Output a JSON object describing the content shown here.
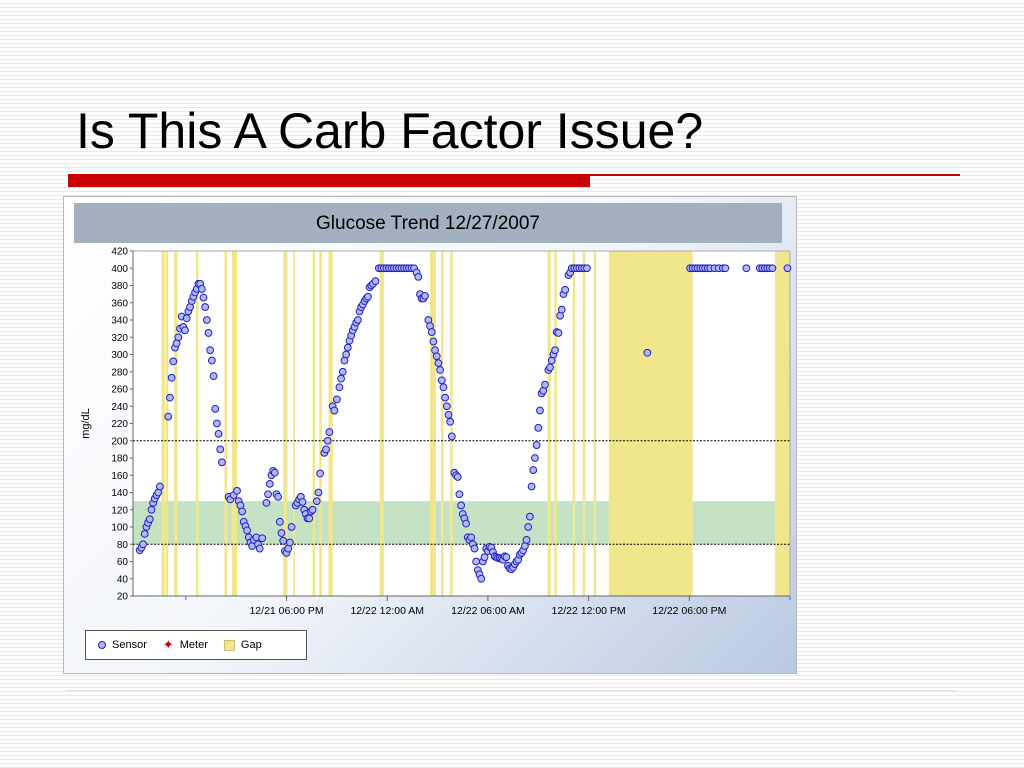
{
  "slide": {
    "title": "Is This A Carb Factor Issue?",
    "colors": {
      "accent_bar": "#cc0000",
      "accent_line": "#cc0000"
    }
  },
  "chart_data": {
    "type": "scatter",
    "title": "Glucose Trend 12/27/2007",
    "ylabel": "mg/dL",
    "xlabel": "",
    "ylim": [
      20,
      420
    ],
    "yticks": [
      20,
      40,
      60,
      80,
      100,
      120,
      140,
      160,
      180,
      200,
      220,
      240,
      260,
      280,
      300,
      320,
      340,
      360,
      380,
      400,
      420
    ],
    "x_unit": "hours after 12/21 12:00 PM",
    "xlim": [
      0,
      36
    ],
    "xticks": [
      {
        "value": 6,
        "label": "12/21 06:00 PM"
      },
      {
        "value": 12,
        "label": "12/22 12:00 AM"
      },
      {
        "value": 18,
        "label": "12/22 06:00 AM"
      },
      {
        "value": 24,
        "label": "12/22 12:00 PM"
      },
      {
        "value": 30,
        "label": "12/22 06:00 PM"
      }
    ],
    "target_range": [
      80,
      200
    ],
    "normal_band": [
      80,
      130
    ],
    "colors": {
      "sensor": "#2020c0",
      "sensor_fill": "#b0b8f8",
      "meter": "#c00000",
      "gap": "#f0e68c",
      "band": "#c4e2c4"
    },
    "legend": {
      "position": "bottom-left",
      "entries": [
        {
          "name": "Sensor",
          "symbol": "circle"
        },
        {
          "name": "Meter",
          "symbol": "diamond"
        },
        {
          "name": "Gap",
          "symbol": "square"
        }
      ]
    },
    "gaps": [
      [
        -1.45,
        -1.25
      ],
      [
        -1.2,
        -1.05
      ],
      [
        -0.7,
        -0.5
      ],
      [
        0.6,
        0.75
      ],
      [
        2.3,
        2.45
      ],
      [
        2.75,
        3.05
      ],
      [
        5.8,
        6.05
      ],
      [
        6.4,
        6.5
      ],
      [
        7.55,
        7.7
      ],
      [
        7.95,
        8.1
      ],
      [
        8.5,
        8.75
      ],
      [
        11.55,
        11.8
      ],
      [
        14.55,
        14.9
      ],
      [
        15.2,
        15.35
      ],
      [
        15.75,
        15.9
      ],
      [
        21.55,
        21.75
      ],
      [
        21.95,
        22.1
      ],
      [
        23.05,
        23.2
      ],
      [
        23.65,
        23.8
      ],
      [
        24.3,
        24.45
      ],
      [
        25.2,
        30.2
      ],
      [
        35.1,
        36
      ]
    ],
    "series": [
      {
        "name": "Sensor",
        "points": [
          [
            -2.75,
            73
          ],
          [
            -2.65,
            76
          ],
          [
            -2.55,
            80
          ],
          [
            -2.45,
            92
          ],
          [
            -2.35,
            100
          ],
          [
            -2.25,
            105
          ],
          [
            -2.15,
            109
          ],
          [
            -2.05,
            120
          ],
          [
            -1.95,
            128
          ],
          [
            -1.85,
            133
          ],
          [
            -1.75,
            137
          ],
          [
            -1.65,
            140
          ],
          [
            -1.55,
            147
          ],
          [
            -1.05,
            228
          ],
          [
            -0.95,
            250
          ],
          [
            -0.85,
            273
          ],
          [
            -0.75,
            292
          ],
          [
            -0.65,
            308
          ],
          [
            -0.55,
            313
          ],
          [
            -0.45,
            320
          ],
          [
            -0.35,
            330
          ],
          [
            -0.25,
            344
          ],
          [
            -0.15,
            332
          ],
          [
            -0.05,
            328
          ],
          [
            0.05,
            342
          ],
          [
            0.15,
            350
          ],
          [
            0.25,
            355
          ],
          [
            0.35,
            362
          ],
          [
            0.45,
            367
          ],
          [
            0.55,
            372
          ],
          [
            0.65,
            376
          ],
          [
            0.75,
            382
          ],
          [
            0.85,
            382
          ],
          [
            0.95,
            376
          ],
          [
            1.05,
            366
          ],
          [
            1.15,
            355
          ],
          [
            1.25,
            340
          ],
          [
            1.35,
            325
          ],
          [
            1.45,
            305
          ],
          [
            1.55,
            293
          ],
          [
            1.65,
            275
          ],
          [
            1.75,
            237
          ],
          [
            1.85,
            220
          ],
          [
            1.95,
            208
          ],
          [
            2.05,
            190
          ],
          [
            2.15,
            175
          ],
          [
            2.55,
            135
          ],
          [
            2.65,
            132
          ],
          [
            2.85,
            137
          ],
          [
            3.05,
            142
          ],
          [
            3.15,
            130
          ],
          [
            3.25,
            125
          ],
          [
            3.35,
            118
          ],
          [
            3.45,
            106
          ],
          [
            3.55,
            101
          ],
          [
            3.65,
            96
          ],
          [
            3.75,
            88
          ],
          [
            3.85,
            82
          ],
          [
            3.95,
            78
          ],
          [
            4.05,
            85
          ],
          [
            4.2,
            88
          ],
          [
            4.3,
            80
          ],
          [
            4.4,
            75
          ],
          [
            4.55,
            87
          ],
          [
            4.8,
            128
          ],
          [
            4.9,
            138
          ],
          [
            5.0,
            150
          ],
          [
            5.1,
            160
          ],
          [
            5.2,
            165
          ],
          [
            5.3,
            163
          ],
          [
            5.4,
            138
          ],
          [
            5.5,
            135
          ],
          [
            5.6,
            106
          ],
          [
            5.7,
            93
          ],
          [
            5.8,
            84
          ],
          [
            5.9,
            72
          ],
          [
            6.0,
            70
          ],
          [
            6.1,
            75
          ],
          [
            6.2,
            82
          ],
          [
            6.3,
            100
          ],
          [
            6.55,
            125
          ],
          [
            6.65,
            128
          ],
          [
            6.75,
            132
          ],
          [
            6.85,
            135
          ],
          [
            6.95,
            129
          ],
          [
            7.05,
            120
          ],
          [
            7.15,
            115
          ],
          [
            7.25,
            110
          ],
          [
            7.35,
            110
          ],
          [
            7.45,
            118
          ],
          [
            7.55,
            120
          ],
          [
            7.8,
            130
          ],
          [
            7.9,
            140
          ],
          [
            8.0,
            162
          ],
          [
            8.25,
            186
          ],
          [
            8.35,
            190
          ],
          [
            8.45,
            200
          ],
          [
            8.55,
            210
          ],
          [
            8.75,
            240
          ],
          [
            8.85,
            235
          ],
          [
            9.0,
            248
          ],
          [
            9.15,
            262
          ],
          [
            9.25,
            272
          ],
          [
            9.35,
            280
          ],
          [
            9.45,
            293
          ],
          [
            9.55,
            300
          ],
          [
            9.65,
            308
          ],
          [
            9.75,
            316
          ],
          [
            9.85,
            322
          ],
          [
            9.95,
            328
          ],
          [
            10.05,
            332
          ],
          [
            10.15,
            337
          ],
          [
            10.25,
            340
          ],
          [
            10.35,
            350
          ],
          [
            10.45,
            355
          ],
          [
            10.55,
            358
          ],
          [
            10.65,
            362
          ],
          [
            10.75,
            365
          ],
          [
            10.85,
            367
          ],
          [
            10.95,
            378
          ],
          [
            11.05,
            380
          ],
          [
            11.15,
            382
          ],
          [
            11.3,
            385
          ],
          [
            11.5,
            400
          ],
          [
            11.65,
            400
          ],
          [
            11.8,
            400
          ],
          [
            11.95,
            400
          ],
          [
            12.1,
            400
          ],
          [
            12.25,
            400
          ],
          [
            12.4,
            400
          ],
          [
            12.55,
            400
          ],
          [
            12.7,
            400
          ],
          [
            12.85,
            400
          ],
          [
            13.0,
            400
          ],
          [
            13.15,
            400
          ],
          [
            13.3,
            400
          ],
          [
            13.45,
            400
          ],
          [
            13.6,
            400
          ],
          [
            13.75,
            395
          ],
          [
            13.85,
            390
          ],
          [
            13.95,
            370
          ],
          [
            14.05,
            365
          ],
          [
            14.15,
            365
          ],
          [
            14.25,
            368
          ],
          [
            14.45,
            340
          ],
          [
            14.55,
            333
          ],
          [
            14.65,
            326
          ],
          [
            14.75,
            315
          ],
          [
            14.85,
            305
          ],
          [
            14.95,
            298
          ],
          [
            15.05,
            290
          ],
          [
            15.15,
            282
          ],
          [
            15.25,
            270
          ],
          [
            15.35,
            262
          ],
          [
            15.45,
            250
          ],
          [
            15.55,
            240
          ],
          [
            15.65,
            230
          ],
          [
            15.75,
            222
          ],
          [
            15.85,
            205
          ],
          [
            16.0,
            163
          ],
          [
            16.1,
            160
          ],
          [
            16.2,
            158
          ],
          [
            16.3,
            138
          ],
          [
            16.4,
            125
          ],
          [
            16.5,
            115
          ],
          [
            16.6,
            110
          ],
          [
            16.7,
            104
          ],
          [
            16.8,
            88
          ],
          [
            16.9,
            85
          ],
          [
            17.0,
            88
          ],
          [
            17.1,
            80
          ],
          [
            17.2,
            75
          ],
          [
            17.3,
            60
          ],
          [
            17.4,
            50
          ],
          [
            17.5,
            45
          ],
          [
            17.6,
            40
          ],
          [
            17.7,
            60
          ],
          [
            17.8,
            65
          ],
          [
            17.9,
            75
          ],
          [
            18.0,
            72
          ],
          [
            18.1,
            77
          ],
          [
            18.2,
            76
          ],
          [
            18.3,
            71
          ],
          [
            18.4,
            66
          ],
          [
            18.5,
            65
          ],
          [
            18.6,
            64
          ],
          [
            18.7,
            64
          ],
          [
            18.8,
            63
          ],
          [
            18.9,
            62
          ],
          [
            19.0,
            66
          ],
          [
            19.1,
            65
          ],
          [
            19.2,
            55
          ],
          [
            19.3,
            52
          ],
          [
            19.4,
            51
          ],
          [
            19.5,
            53
          ],
          [
            19.6,
            57
          ],
          [
            19.7,
            60
          ],
          [
            19.8,
            62
          ],
          [
            19.9,
            68
          ],
          [
            20.0,
            70
          ],
          [
            20.1,
            73
          ],
          [
            20.2,
            78
          ],
          [
            20.3,
            85
          ],
          [
            20.4,
            100
          ],
          [
            20.5,
            112
          ],
          [
            20.6,
            147
          ],
          [
            20.7,
            166
          ],
          [
            20.8,
            180
          ],
          [
            20.9,
            195
          ],
          [
            21.0,
            215
          ],
          [
            21.1,
            235
          ],
          [
            21.2,
            255
          ],
          [
            21.3,
            258
          ],
          [
            21.4,
            265
          ],
          [
            21.6,
            282
          ],
          [
            21.7,
            285
          ],
          [
            21.8,
            293
          ],
          [
            21.9,
            300
          ],
          [
            22.0,
            305
          ],
          [
            22.1,
            326
          ],
          [
            22.2,
            325
          ],
          [
            22.3,
            345
          ],
          [
            22.4,
            352
          ],
          [
            22.5,
            370
          ],
          [
            22.6,
            375
          ],
          [
            22.8,
            392
          ],
          [
            22.9,
            395
          ],
          [
            23.0,
            400
          ],
          [
            23.15,
            400
          ],
          [
            23.3,
            400
          ],
          [
            23.45,
            400
          ],
          [
            23.6,
            400
          ],
          [
            23.75,
            400
          ],
          [
            23.9,
            400
          ],
          [
            27.5,
            302
          ],
          [
            30.05,
            400
          ],
          [
            30.2,
            400
          ],
          [
            30.35,
            400
          ],
          [
            30.5,
            400
          ],
          [
            30.65,
            400
          ],
          [
            30.8,
            400
          ],
          [
            30.95,
            400
          ],
          [
            31.1,
            400
          ],
          [
            31.25,
            400
          ],
          [
            31.5,
            400
          ],
          [
            31.75,
            400
          ],
          [
            32.0,
            400
          ],
          [
            32.15,
            400
          ],
          [
            33.4,
            400
          ],
          [
            34.2,
            400
          ],
          [
            34.35,
            400
          ],
          [
            34.5,
            400
          ],
          [
            34.65,
            400
          ],
          [
            34.8,
            400
          ],
          [
            34.95,
            400
          ],
          [
            35.85,
            400
          ]
        ]
      },
      {
        "name": "Meter",
        "points": []
      }
    ]
  }
}
